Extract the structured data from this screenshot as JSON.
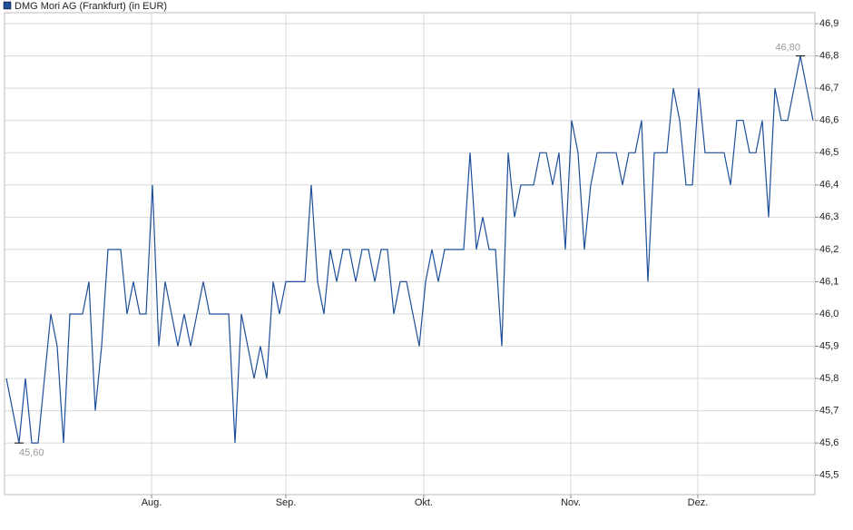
{
  "chart_data": {
    "type": "line",
    "legend": "DMG Mori AG (Frankfurt) (in EUR)",
    "series": [
      {
        "name": "DMG Mori AG (Frankfurt) (in EUR)",
        "color": "#1d4f9a",
        "values": [
          45.8,
          45.7,
          45.6,
          45.8,
          45.6,
          45.6,
          45.8,
          46.0,
          45.9,
          45.6,
          46.0,
          46.0,
          46.0,
          46.1,
          45.7,
          45.9,
          46.2,
          46.2,
          46.2,
          46.0,
          46.1,
          46.0,
          46.0,
          46.4,
          45.9,
          46.1,
          46.0,
          45.9,
          46.0,
          45.9,
          46.0,
          46.1,
          46.0,
          46.0,
          46.0,
          46.0,
          45.6,
          46.0,
          45.9,
          45.8,
          45.9,
          45.8,
          46.1,
          46.0,
          46.1,
          46.1,
          46.1,
          46.1,
          46.4,
          46.1,
          46.0,
          46.2,
          46.1,
          46.2,
          46.2,
          46.1,
          46.2,
          46.2,
          46.1,
          46.2,
          46.2,
          46.0,
          46.1,
          46.1,
          46.0,
          45.9,
          46.1,
          46.2,
          46.1,
          46.2,
          46.2,
          46.2,
          46.2,
          46.5,
          46.2,
          46.3,
          46.2,
          46.2,
          45.9,
          46.5,
          46.3,
          46.4,
          46.4,
          46.4,
          46.5,
          46.5,
          46.4,
          46.5,
          46.2,
          46.6,
          46.5,
          46.2,
          46.4,
          46.5,
          46.5,
          46.5,
          46.5,
          46.4,
          46.5,
          46.5,
          46.6,
          46.1,
          46.5,
          46.5,
          46.5,
          46.7,
          46.6,
          46.4,
          46.4,
          46.7,
          46.5,
          46.5,
          46.5,
          46.5,
          46.4,
          46.6,
          46.6,
          46.5,
          46.5,
          46.6,
          46.3,
          46.7,
          46.6,
          46.6,
          46.7,
          46.8,
          46.7,
          46.6
        ]
      }
    ],
    "annotations": [
      {
        "label": "45,60",
        "value": 45.6
      },
      {
        "label": "46,80",
        "value": 46.8
      }
    ],
    "xlim": [
      -0.29,
      127.29
    ],
    "xticks": [
      {
        "value": 22.86,
        "label": "Aug."
      },
      {
        "value": 44,
        "label": "Sep."
      },
      {
        "value": 65.71,
        "label": "Okt."
      },
      {
        "value": 88.86,
        "label": "Nov."
      },
      {
        "value": 108.86,
        "label": "Dez."
      }
    ],
    "ylim": [
      45.44,
      46.934
    ],
    "yticks": [
      {
        "value": 45.5,
        "label": "45,5"
      },
      {
        "value": 45.6,
        "label": "45,6"
      },
      {
        "value": 45.7,
        "label": "45,7"
      },
      {
        "value": 45.8,
        "label": "45,8"
      },
      {
        "value": 45.9,
        "label": "45,9"
      },
      {
        "value": 46.0,
        "label": "46,0"
      },
      {
        "value": 46.1,
        "label": "46,1"
      },
      {
        "value": 46.2,
        "label": "46,2"
      },
      {
        "value": 46.3,
        "label": "46,3"
      },
      {
        "value": 46.4,
        "label": "46,4"
      },
      {
        "value": 46.5,
        "label": "46,5"
      },
      {
        "value": 46.6,
        "label": "46,6"
      },
      {
        "value": 46.7,
        "label": "46,7"
      },
      {
        "value": 46.8,
        "label": "46,8"
      },
      {
        "value": 46.9,
        "label": "46,9"
      }
    ],
    "grid": true
  }
}
